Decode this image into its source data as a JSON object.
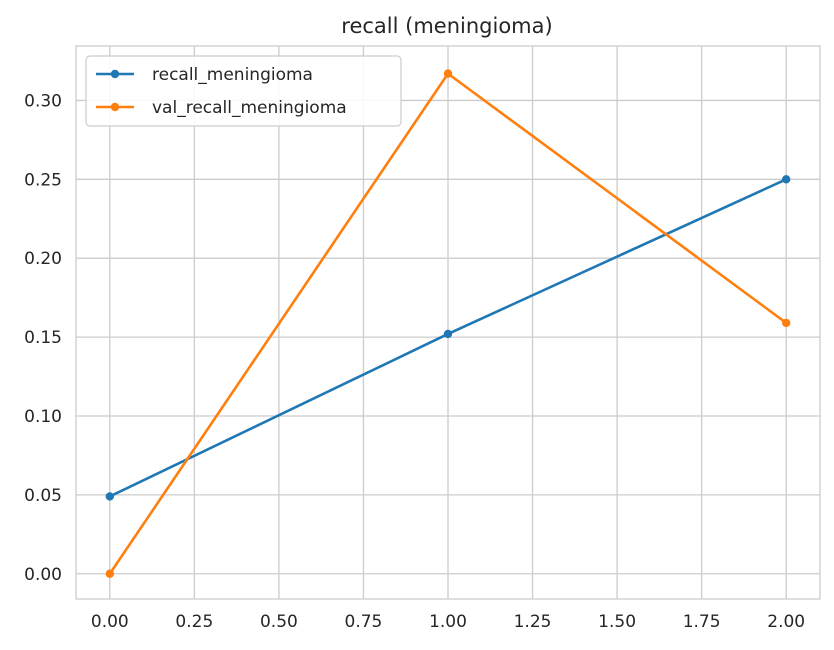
{
  "chart_data": {
    "type": "line",
    "title": "recall (meningioma)",
    "xlabel": "",
    "ylabel": "",
    "xlim": [
      -0.1,
      2.1
    ],
    "ylim": [
      -0.016,
      0.3345
    ],
    "x_ticks": [
      0.0,
      0.25,
      0.5,
      0.75,
      1.0,
      1.25,
      1.5,
      1.75,
      2.0
    ],
    "x_tick_labels": [
      "0.00",
      "0.25",
      "0.50",
      "0.75",
      "1.00",
      "1.25",
      "1.50",
      "1.75",
      "2.00"
    ],
    "y_ticks": [
      0.0,
      0.05,
      0.1,
      0.15,
      0.2,
      0.25,
      0.3
    ],
    "y_tick_labels": [
      "0.00",
      "0.05",
      "0.10",
      "0.15",
      "0.20",
      "0.25",
      "0.30"
    ],
    "grid": true,
    "legend_position": "top-left",
    "series": [
      {
        "name": "recall_meningioma",
        "color": "#1f77b4",
        "x": [
          0,
          1,
          2
        ],
        "values": [
          0.049,
          0.152,
          0.25
        ]
      },
      {
        "name": "val_recall_meningioma",
        "color": "#ff7f0e",
        "x": [
          0,
          1,
          2
        ],
        "values": [
          0.0,
          0.317,
          0.159
        ]
      }
    ]
  }
}
